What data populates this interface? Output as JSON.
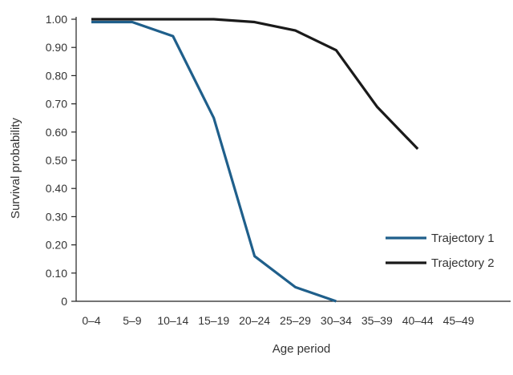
{
  "chart_data": {
    "type": "line",
    "title": "",
    "xlabel": "Age period",
    "ylabel": "Survival probability",
    "categories": [
      "0–4",
      "5–9",
      "10–14",
      "15–19",
      "20–24",
      "25–29",
      "30–34",
      "35–39",
      "40–44",
      "45–49"
    ],
    "y_ticks": [
      "0",
      "0.10",
      "0.20",
      "0.30",
      "0.40",
      "0.50",
      "0.60",
      "0.70",
      "0.80",
      "0.90",
      "1.00"
    ],
    "ylim": [
      0,
      1.0
    ],
    "grid": false,
    "legend_position": "bottom-right",
    "series": [
      {
        "name": "Trajectory 1",
        "color": "#1f5f8b",
        "values": [
          0.99,
          0.99,
          0.94,
          0.65,
          0.16,
          0.05,
          0.0,
          null,
          null,
          null
        ]
      },
      {
        "name": "Trajectory 2",
        "color": "#1a1a1a",
        "values": [
          1.0,
          1.0,
          1.0,
          1.0,
          0.99,
          0.96,
          0.89,
          0.69,
          0.54,
          null
        ]
      }
    ]
  }
}
